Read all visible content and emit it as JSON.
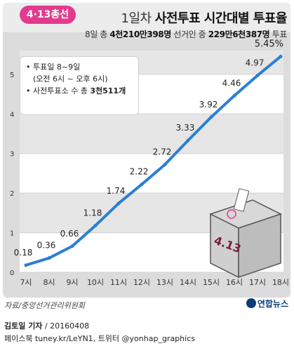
{
  "badge": "4·13총선",
  "title_light": "1일차 ",
  "title_bold": "사전투표 시간대별 투표율",
  "subtitle_pre": "8일 총 ",
  "subtitle_b1": "4천210만398명",
  "subtitle_mid": " 선거인 중 ",
  "subtitle_b2": "229만6천387명",
  "subtitle_post": " 투표",
  "notes": {
    "line1": "투표일 8~9일",
    "line2": "(오전 6시 ~ 오후 6시)",
    "line3_pre": "사전투표소 수 총 ",
    "line3_bold": "3천511개"
  },
  "ballot_box_label": "4.13",
  "source": "자료/중앙선거관리위원회",
  "logo": "연합뉴스",
  "credit_author": "김토일 기자",
  "credit_date": " / 20160408",
  "credit_social": "페이스북 tuney.kr/LeYN1, 트위터 @yonhap_graphics",
  "colors": {
    "line": "#2b7fd4",
    "badge": "#e23a8e"
  },
  "chart_data": {
    "type": "line",
    "categories": [
      "7시",
      "8시",
      "9시",
      "10시",
      "11시",
      "12시",
      "13시",
      "14시",
      "15시",
      "16시",
      "17시",
      "18시"
    ],
    "values": [
      0.18,
      0.36,
      0.66,
      1.18,
      1.74,
      2.22,
      2.72,
      3.33,
      3.92,
      4.46,
      4.97,
      5.45
    ],
    "data_labels": [
      "0.18",
      "0.36",
      "0.66",
      "1.18",
      "1.74",
      "2.22",
      "2.72",
      "3.33",
      "3.92",
      "4.46",
      "4.97",
      "5.45%"
    ],
    "yticks": [
      0,
      1,
      2,
      3,
      4,
      5
    ],
    "ylim": [
      0,
      5.6
    ],
    "title": "1일차 사전투표 시간대별 투표율",
    "grid": true
  }
}
